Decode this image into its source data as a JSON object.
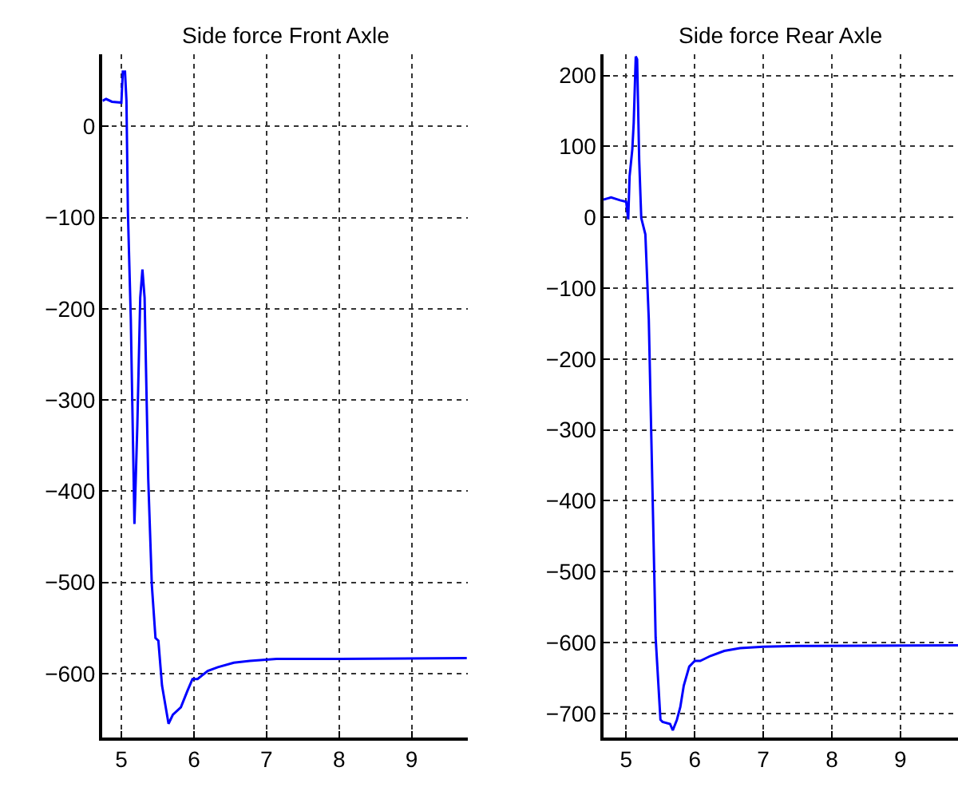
{
  "chart_data": [
    {
      "type": "line",
      "title": "Side force Front Axle",
      "grid": true,
      "line_style": "solid",
      "x": [
        4.74,
        4.79,
        4.87,
        5.0,
        5.02,
        5.05,
        5.07,
        5.09,
        5.13,
        5.18,
        5.22,
        5.26,
        5.29,
        5.32,
        5.37,
        5.42,
        5.47,
        5.51,
        5.56,
        5.65,
        5.71,
        5.82,
        5.91,
        5.98,
        6.05,
        6.19,
        6.33,
        6.55,
        6.77,
        7.14,
        8.02,
        9.76
      ],
      "series": [
        {
          "color": "#0000ff",
          "values": [
            28,
            30,
            27,
            26,
            60,
            60,
            28,
            -94,
            -211,
            -436,
            -328,
            -188,
            -157,
            -188,
            -386,
            -503,
            -561,
            -564,
            -613,
            -655,
            -645,
            -637,
            -619,
            -606,
            -606,
            -597,
            -593,
            -588,
            -586,
            -584,
            -584,
            -583
          ]
        }
      ],
      "xlim": [
        4.74,
        9.77
      ],
      "ylim": [
        -670,
        79
      ],
      "xticks": [
        5,
        6,
        7,
        8,
        9
      ],
      "yticks": [
        -600,
        -500,
        -400,
        -300,
        -200,
        -100,
        0
      ]
    },
    {
      "type": "line",
      "title": "Side force Rear Axle",
      "grid": true,
      "line_style": "solid",
      "x": [
        4.67,
        4.78,
        4.91,
        5.0,
        5.03,
        5.05,
        5.09,
        5.11,
        5.14,
        5.16,
        5.19,
        5.22,
        5.28,
        5.33,
        5.38,
        5.43,
        5.5,
        5.53,
        5.64,
        5.68,
        5.74,
        5.79,
        5.84,
        5.92,
        6.0,
        6.08,
        6.23,
        6.43,
        6.66,
        7.0,
        7.51,
        9.84
      ],
      "series": [
        {
          "color": "#0000ff",
          "values": [
            25,
            28,
            24,
            22,
            -3,
            58,
            96,
            133,
            227,
            223,
            81,
            -1,
            -24,
            -144,
            -369,
            -593,
            -709,
            -712,
            -715,
            -724,
            -709,
            -691,
            -661,
            -634,
            -626,
            -626,
            -619,
            -612,
            -608,
            -606,
            -605,
            -604
          ]
        }
      ],
      "xlim": [
        4.67,
        9.84
      ],
      "ylim": [
        -734,
        230
      ],
      "xticks": [
        5,
        6,
        7,
        8,
        9
      ],
      "yticks": [
        -700,
        -600,
        -500,
        -400,
        -300,
        -200,
        -100,
        0,
        100,
        200
      ]
    }
  ]
}
